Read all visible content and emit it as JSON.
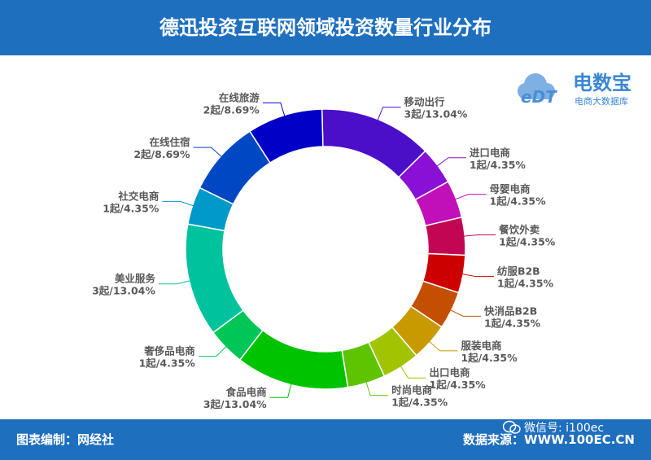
{
  "header": {
    "title": "德迅投资互联网领域投资数量行业分布"
  },
  "footer": {
    "credit": "图表编制：网经社",
    "source": "数据来源：WWW.100EC.CN",
    "wechat": "微信号: i100ec"
  },
  "logo": {
    "brand": "电数宝",
    "subtitle": "电商大数据库",
    "mark": "eDT",
    "icon": "cloud-icon"
  },
  "colors": {
    "bar": "#1f6fbf",
    "text": "#595959"
  },
  "chart_data": {
    "type": "pie",
    "donut": true,
    "slices": [
      {
        "name": "移动出行",
        "count": "3起",
        "percent": "13.04%",
        "value": 13.04,
        "color": "#4b0fc9"
      },
      {
        "name": "进口电商",
        "count": "1起",
        "percent": "4.35%",
        "value": 4.35,
        "color": "#8a10d6"
      },
      {
        "name": "母婴电商",
        "count": "1起",
        "percent": "4.35%",
        "value": 4.35,
        "color": "#c10fb9"
      },
      {
        "name": "餐饮外卖",
        "count": "1起",
        "percent": "4.35%",
        "value": 4.35,
        "color": "#c30653"
      },
      {
        "name": "纺服B2B",
        "count": "1起",
        "percent": "4.35%",
        "value": 4.35,
        "color": "#cc0000"
      },
      {
        "name": "快消品B2B",
        "count": "1起",
        "percent": "4.35%",
        "value": 4.35,
        "color": "#c44f00"
      },
      {
        "name": "服装电商",
        "count": "1起",
        "percent": "4.35%",
        "value": 4.35,
        "color": "#c99a00"
      },
      {
        "name": "出口电商",
        "count": "1起",
        "percent": "4.35%",
        "value": 4.35,
        "color": "#a2c400"
      },
      {
        "name": "时尚电商",
        "count": "1起",
        "percent": "4.35%",
        "value": 4.35,
        "color": "#5ec300"
      },
      {
        "name": "食品电商",
        "count": "3起",
        "percent": "13.04%",
        "value": 13.04,
        "color": "#00c300"
      },
      {
        "name": "奢侈品电商",
        "count": "1起",
        "percent": "4.35%",
        "value": 4.35,
        "color": "#00c657"
      },
      {
        "name": "美业服务",
        "count": "3起",
        "percent": "13.04%",
        "value": 13.04,
        "color": "#00c29d"
      },
      {
        "name": "社交电商",
        "count": "1起",
        "percent": "4.35%",
        "value": 4.35,
        "color": "#0099c9"
      },
      {
        "name": "在线住宿",
        "count": "2起",
        "percent": "8.69%",
        "value": 8.69,
        "color": "#0048c3"
      },
      {
        "name": "在线旅游",
        "count": "2起",
        "percent": "8.69%",
        "value": 8.69,
        "color": "#0000c6"
      }
    ]
  }
}
